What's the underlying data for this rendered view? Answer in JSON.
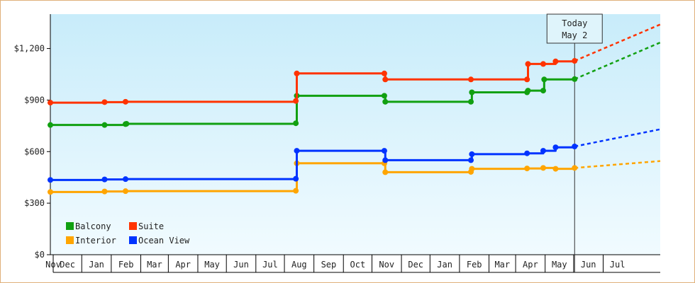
{
  "chart_data": {
    "type": "line",
    "title": "",
    "xlabel": "",
    "ylabel": "",
    "ylim": [
      0,
      1400
    ],
    "y_ticks": [
      0,
      300,
      600,
      900,
      1200
    ],
    "y_tick_labels": [
      "$0",
      "$300",
      "$600",
      "$900",
      "$1,200"
    ],
    "month_labels": [
      "Nov",
      "Dec",
      "Jan",
      "Feb",
      "Mar",
      "Apr",
      "May",
      "Jun",
      "Jul",
      "Aug",
      "Sep",
      "Oct",
      "Nov",
      "Dec",
      "Jan",
      "Feb",
      "Mar",
      "Apr",
      "May",
      "Jun",
      "Jul"
    ],
    "x_range": [
      "2015-10-29",
      "2017-07-31"
    ],
    "today": {
      "date": "2017-05-02",
      "label_line1": "Today",
      "label_line2": "May 2"
    },
    "grid": false,
    "legend_position": "bottom-left",
    "series": [
      {
        "name": "Balcony",
        "color": "#11a011",
        "points": [
          [
            "2015-10-29",
            755
          ],
          [
            "2015-12-25",
            755
          ],
          [
            "2016-01-16",
            760
          ],
          [
            "2016-01-17",
            762
          ],
          [
            "2016-07-13",
            765
          ],
          [
            "2016-07-14",
            925
          ],
          [
            "2016-10-14",
            925
          ],
          [
            "2016-10-15",
            890
          ],
          [
            "2017-01-13",
            890
          ],
          [
            "2017-01-14",
            945
          ],
          [
            "2017-03-13",
            945
          ],
          [
            "2017-03-14",
            955
          ],
          [
            "2017-03-30",
            955
          ],
          [
            "2017-03-31",
            1020
          ],
          [
            "2017-05-02",
            1022
          ]
        ],
        "forecast": [
          [
            "2017-05-02",
            1022
          ],
          [
            "2017-07-31",
            1235
          ]
        ]
      },
      {
        "name": "Suite",
        "color": "#ff3300",
        "points": [
          [
            "2015-10-29",
            885
          ],
          [
            "2015-12-25",
            888
          ],
          [
            "2016-01-16",
            890
          ],
          [
            "2016-07-13",
            895
          ],
          [
            "2016-07-14",
            1055
          ],
          [
            "2016-10-14",
            1055
          ],
          [
            "2016-10-15",
            1020
          ],
          [
            "2017-01-13",
            1020
          ],
          [
            "2017-03-13",
            1020
          ],
          [
            "2017-03-14",
            1110
          ],
          [
            "2017-03-30",
            1110
          ],
          [
            "2017-04-12",
            1125
          ],
          [
            "2017-05-02",
            1128
          ]
        ],
        "forecast": [
          [
            "2017-05-02",
            1128
          ],
          [
            "2017-07-31",
            1340
          ]
        ]
      },
      {
        "name": "Interior",
        "color": "#ffa500",
        "points": [
          [
            "2015-10-29",
            365
          ],
          [
            "2015-12-25",
            368
          ],
          [
            "2016-01-16",
            370
          ],
          [
            "2016-07-13",
            372
          ],
          [
            "2016-07-14",
            532
          ],
          [
            "2016-10-14",
            532
          ],
          [
            "2016-10-15",
            480
          ],
          [
            "2017-01-13",
            482
          ],
          [
            "2017-01-14",
            500
          ],
          [
            "2017-03-13",
            502
          ],
          [
            "2017-03-30",
            505
          ],
          [
            "2017-04-12",
            500
          ],
          [
            "2017-05-02",
            505
          ]
        ],
        "forecast": [
          [
            "2017-05-02",
            505
          ],
          [
            "2017-07-31",
            545
          ]
        ]
      },
      {
        "name": "Ocean View",
        "color": "#0033ff",
        "points": [
          [
            "2015-10-29",
            435
          ],
          [
            "2015-12-25",
            438
          ],
          [
            "2016-01-16",
            440
          ],
          [
            "2016-07-13",
            442
          ],
          [
            "2016-07-14",
            605
          ],
          [
            "2016-10-14",
            605
          ],
          [
            "2016-10-15",
            550
          ],
          [
            "2017-01-13",
            550
          ],
          [
            "2017-01-14",
            585
          ],
          [
            "2017-03-13",
            590
          ],
          [
            "2017-03-30",
            605
          ],
          [
            "2017-04-12",
            625
          ],
          [
            "2017-05-02",
            630
          ]
        ],
        "forecast": [
          [
            "2017-05-02",
            630
          ],
          [
            "2017-07-31",
            730
          ]
        ]
      }
    ]
  }
}
